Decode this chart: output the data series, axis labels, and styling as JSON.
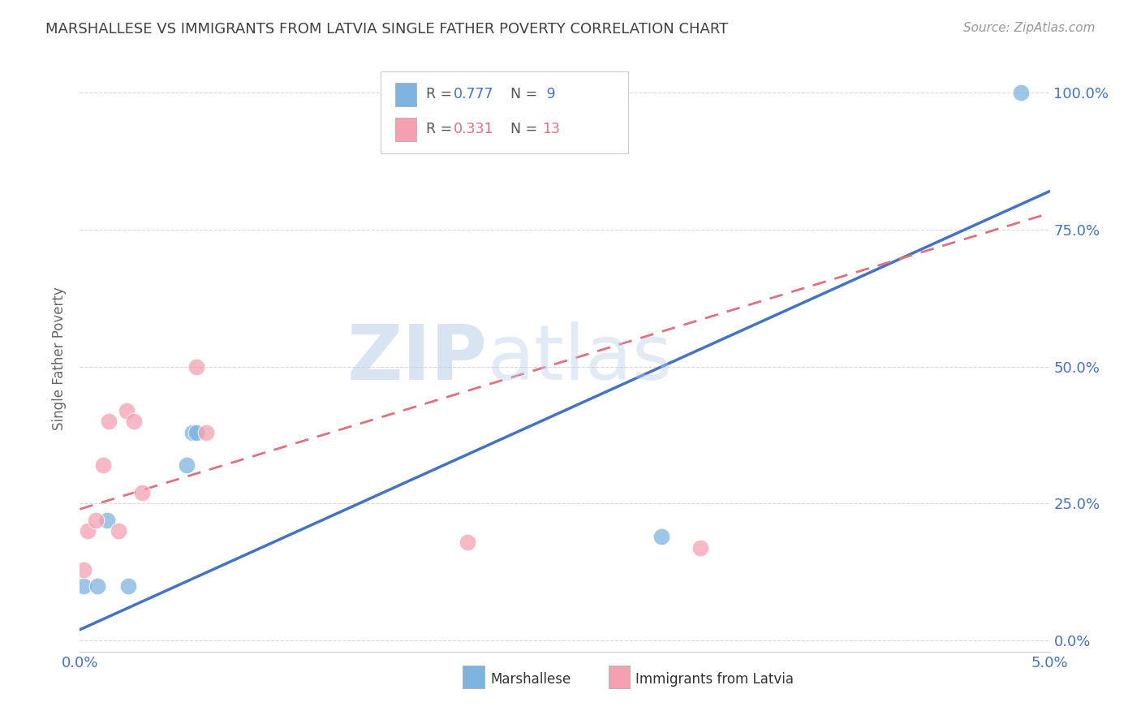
{
  "title": "MARSHALLESE VS IMMIGRANTS FROM LATVIA SINGLE FATHER POVERTY CORRELATION CHART",
  "source": "Source: ZipAtlas.com",
  "ylabel": "Single Father Poverty",
  "xlim": [
    0.0,
    0.05
  ],
  "ylim": [
    -0.02,
    1.05
  ],
  "ytick_labels": [
    "0.0%",
    "25.0%",
    "50.0%",
    "75.0%",
    "100.0%"
  ],
  "ytick_values": [
    0.0,
    0.25,
    0.5,
    0.75,
    1.0
  ],
  "watermark_zip": "ZIP",
  "watermark_atlas": "atlas",
  "legend_r1": "R = 0.777",
  "legend_n1": "N =  9",
  "legend_r2": "R = 0.331",
  "legend_n2": "N = 13",
  "marshallese_x": [
    0.0002,
    0.0009,
    0.0014,
    0.0025,
    0.0055,
    0.0058,
    0.006,
    0.03,
    0.0485
  ],
  "marshallese_y": [
    0.1,
    0.1,
    0.22,
    0.1,
    0.32,
    0.38,
    0.38,
    0.19,
    1.0
  ],
  "latvia_x": [
    0.0002,
    0.0004,
    0.0008,
    0.0012,
    0.0015,
    0.002,
    0.0024,
    0.0028,
    0.0032,
    0.006,
    0.0065,
    0.02,
    0.032
  ],
  "latvia_y": [
    0.13,
    0.2,
    0.22,
    0.32,
    0.4,
    0.2,
    0.42,
    0.4,
    0.27,
    0.5,
    0.38,
    0.18,
    0.17
  ],
  "blue_line_x": [
    0.0,
    0.05
  ],
  "blue_line_y": [
    0.02,
    0.82
  ],
  "pink_line_x": [
    0.0,
    0.05
  ],
  "pink_line_y": [
    0.24,
    0.78
  ],
  "marshallese_color": "#7eb3e0",
  "latvia_color": "#f4a0b0",
  "blue_line_color": "#4472c4",
  "pink_line_color": "#e07080",
  "grid_color": "#d0d0d0",
  "axis_color": "#4472c4",
  "title_color": "#404040",
  "background_color": "#ffffff"
}
